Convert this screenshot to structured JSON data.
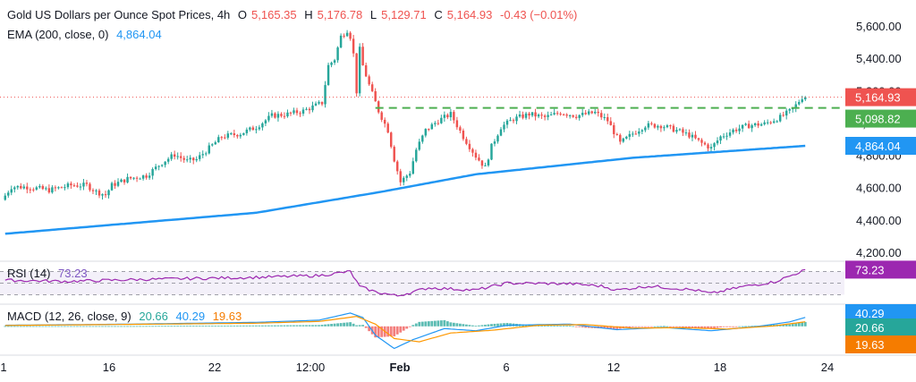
{
  "header": {
    "symbol_title": "Gold US Dollars per Ounce Spot Prices, 4h",
    "open_label": "O",
    "open_value": "5,165.35",
    "high_label": "H",
    "high_value": "5,176.78",
    "low_label": "L",
    "low_value": "5,129.71",
    "close_label": "C",
    "close_value": "5,164.93",
    "change": "-0.43 (−0.01%)"
  },
  "ema_legend": {
    "label": "EMA (200, close, 0)",
    "value": "4,864.04"
  },
  "rsi_legend": {
    "label": "RSI (14)",
    "value": "73.23"
  },
  "macd_legend": {
    "label": "MACD (12, 26, close, 9)",
    "v1": "20.66",
    "v2": "40.29",
    "v3": "19.63"
  },
  "colors": {
    "up": "#26a69a",
    "down": "#ef5350",
    "ema": "#2196f3",
    "resistance": "#4caf50",
    "rsi": "#9c27b0",
    "macd_line": "#2196f3",
    "signal_line": "#ff9800"
  },
  "chart_data": [
    {
      "type": "candlestick",
      "title": "Gold US Dollars per Ounce Spot Prices, 4h",
      "x_ticks": [
        "1",
        "16",
        "22",
        "12:00",
        "Feb",
        "6",
        "12",
        "18",
        "24"
      ],
      "y_ticks": [
        "5,600.00",
        "5,400.00",
        "5,200.00",
        "5,000.00",
        "4,800.00",
        "4,600.00",
        "4,400.00",
        "4,200.00"
      ],
      "ylim": [
        4180,
        5700
      ],
      "price_path": [
        [
          0,
          4530
        ],
        [
          3,
          4610
        ],
        [
          8,
          4610
        ],
        [
          15,
          4590
        ],
        [
          22,
          4620
        ],
        [
          27,
          4620
        ],
        [
          30,
          4580
        ],
        [
          33,
          4560
        ],
        [
          35,
          4620
        ],
        [
          40,
          4660
        ],
        [
          46,
          4680
        ],
        [
          51,
          4760
        ],
        [
          55,
          4810
        ],
        [
          59,
          4770
        ],
        [
          62,
          4780
        ],
        [
          70,
          4920
        ],
        [
          76,
          4940
        ],
        [
          81,
          4980
        ],
        [
          86,
          5050
        ],
        [
          91,
          5060
        ],
        [
          96,
          5080
        ],
        [
          102,
          5130
        ],
        [
          104,
          5360
        ],
        [
          106,
          5400
        ],
        [
          108,
          5540
        ],
        [
          110,
          5580
        ],
        [
          111,
          5540
        ],
        [
          112,
          5430
        ],
        [
          113,
          5200
        ],
        [
          114,
          5460
        ],
        [
          115,
          5360
        ],
        [
          117,
          5240
        ],
        [
          120,
          5080
        ],
        [
          123,
          4960
        ],
        [
          125,
          4780
        ],
        [
          127,
          4640
        ],
        [
          130,
          4700
        ],
        [
          132,
          4840
        ],
        [
          135,
          4960
        ],
        [
          139,
          5020
        ],
        [
          143,
          5060
        ],
        [
          147,
          4920
        ],
        [
          151,
          4800
        ],
        [
          154,
          4730
        ],
        [
          156,
          4860
        ],
        [
          159,
          4980
        ],
        [
          163,
          5030
        ],
        [
          168,
          5060
        ],
        [
          173,
          5040
        ],
        [
          178,
          5070
        ],
        [
          183,
          5050
        ],
        [
          189,
          5070
        ],
        [
          193,
          5020
        ],
        [
          197,
          4880
        ],
        [
          201,
          4940
        ],
        [
          205,
          4990
        ],
        [
          210,
          4990
        ],
        [
          215,
          4960
        ],
        [
          219,
          4930
        ],
        [
          223,
          4880
        ],
        [
          226,
          4850
        ],
        [
          229,
          4920
        ],
        [
          233,
          4960
        ],
        [
          238,
          4990
        ],
        [
          243,
          5000
        ],
        [
          248,
          5040
        ],
        [
          252,
          5090
        ],
        [
          255,
          5164.93
        ]
      ],
      "candle_count": 256,
      "last_price": 5164.93,
      "resistance_level": 5098.82,
      "resistance_label": "5,098.82",
      "last_price_label": "5,164.93",
      "ema_label": "4,864.04",
      "ema": {
        "name": "EMA (200, close, 0)",
        "last": 4864.04,
        "path": [
          [
            0,
            4320
          ],
          [
            80,
            4450
          ],
          [
            120,
            4580
          ],
          [
            150,
            4688
          ],
          [
            200,
            4790
          ],
          [
            255,
            4864.04
          ]
        ]
      }
    },
    {
      "type": "line",
      "title": "RSI (14)",
      "last": 73.23,
      "value_label": "73.23",
      "bands": [
        70,
        50,
        30
      ],
      "series": [
        [
          0,
          55
        ],
        [
          20,
          53
        ],
        [
          40,
          56
        ],
        [
          60,
          58
        ],
        [
          80,
          60
        ],
        [
          100,
          63
        ],
        [
          110,
          70
        ],
        [
          113,
          44
        ],
        [
          118,
          35
        ],
        [
          125,
          28
        ],
        [
          135,
          42
        ],
        [
          150,
          38
        ],
        [
          160,
          50
        ],
        [
          180,
          49
        ],
        [
          190,
          45
        ],
        [
          195,
          38
        ],
        [
          205,
          45
        ],
        [
          220,
          38
        ],
        [
          225,
          32
        ],
        [
          235,
          44
        ],
        [
          245,
          52
        ],
        [
          250,
          62
        ],
        [
          255,
          73.23
        ]
      ]
    },
    {
      "type": "line",
      "title": "MACD (12, 26, close, 9)",
      "value_labels": [
        "40.29",
        "20.66",
        "19.63"
      ],
      "macd": [
        [
          0,
          5
        ],
        [
          40,
          10
        ],
        [
          80,
          18
        ],
        [
          100,
          28
        ],
        [
          110,
          60
        ],
        [
          114,
          40
        ],
        [
          118,
          -40
        ],
        [
          124,
          -100
        ],
        [
          130,
          -60
        ],
        [
          140,
          -10
        ],
        [
          150,
          -20
        ],
        [
          160,
          5
        ],
        [
          180,
          10
        ],
        [
          195,
          -15
        ],
        [
          210,
          -5
        ],
        [
          225,
          -20
        ],
        [
          240,
          0
        ],
        [
          250,
          20
        ],
        [
          255,
          40.29
        ]
      ],
      "signal": [
        [
          0,
          4
        ],
        [
          40,
          9
        ],
        [
          80,
          14
        ],
        [
          100,
          22
        ],
        [
          112,
          45
        ],
        [
          118,
          10
        ],
        [
          124,
          -55
        ],
        [
          132,
          -70
        ],
        [
          142,
          -30
        ],
        [
          155,
          -18
        ],
        [
          170,
          5
        ],
        [
          185,
          8
        ],
        [
          200,
          -8
        ],
        [
          215,
          -6
        ],
        [
          230,
          -12
        ],
        [
          245,
          2
        ],
        [
          255,
          20.66
        ]
      ],
      "histogram_last": 19.63
    }
  ]
}
